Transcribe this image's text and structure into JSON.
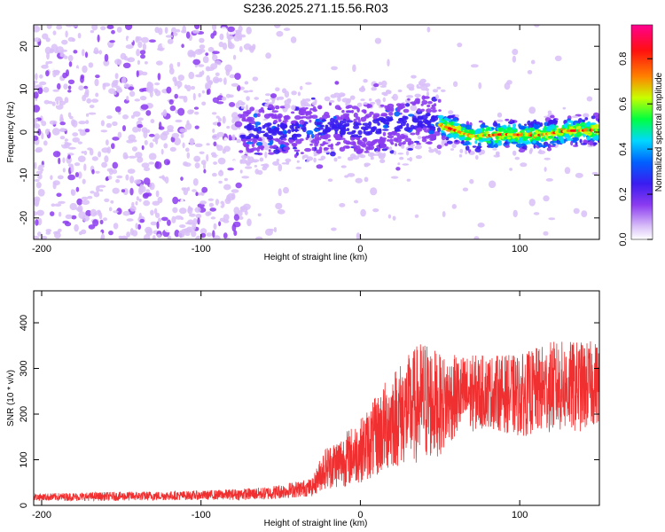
{
  "figure_title": "S236.2025.271.15.56.R03",
  "chart_data": [
    {
      "type": "heatmap",
      "title": "",
      "xlabel": "Height of straight line (km)",
      "ylabel": "Frequency (Hz)",
      "xlim": [
        -205,
        150
      ],
      "ylim": [
        -25,
        25
      ],
      "xticks": [
        -200,
        -100,
        0,
        100
      ],
      "yticks": [
        -20,
        -10,
        0,
        10,
        20
      ],
      "colorbar": {
        "label": "Normalized spectral amplitude",
        "range": [
          0,
          0.95
        ],
        "ticks": [
          "0.0",
          "0.2",
          "0.4",
          "0.6",
          "0.8"
        ],
        "colors": [
          "#ffffff",
          "#d9c0f8",
          "#8c3cf0",
          "#3a1cf0",
          "#0060ff",
          "#00d8ff",
          "#00ff40",
          "#c8ff00",
          "#ff8000",
          "#ff1010",
          "#ff0090"
        ]
      },
      "ridge": {
        "description_points": [
          [
            -75,
            0
          ],
          [
            -60,
            0.5
          ],
          [
            -40,
            0
          ],
          [
            -20,
            1.5
          ],
          [
            0,
            0.5
          ],
          [
            20,
            2
          ],
          [
            40,
            3
          ],
          [
            55,
            1
          ],
          [
            70,
            -1
          ],
          [
            90,
            -0.5
          ],
          [
            110,
            -0.8
          ],
          [
            130,
            0.3
          ],
          [
            150,
            0.5
          ]
        ],
        "noise_region_end_km": -75
      }
    },
    {
      "type": "line",
      "title": "",
      "xlabel": "Height of straight line (km)",
      "ylabel": "SNR (10 * v/v)",
      "xlim": [
        -205,
        150
      ],
      "ylim": [
        0,
        470
      ],
      "xticks": [
        -200,
        -100,
        0,
        100
      ],
      "yticks": [
        0,
        100,
        200,
        300,
        400
      ],
      "series": [
        {
          "name": "SNR",
          "color": "#f03030",
          "envelope_x": [
            -205,
            -150,
            -100,
            -60,
            -30,
            -23,
            -10,
            0,
            10,
            20,
            30,
            40,
            50,
            60,
            80,
            100,
            120,
            140,
            150
          ],
          "envelope_mean": [
            18,
            20,
            22,
            26,
            40,
            80,
            100,
            120,
            150,
            190,
            210,
            230,
            220,
            240,
            250,
            240,
            260,
            260,
            270
          ],
          "envelope_spread": [
            8,
            10,
            10,
            14,
            20,
            45,
            60,
            70,
            90,
            110,
            120,
            140,
            110,
            90,
            80,
            90,
            100,
            100,
            90
          ]
        }
      ]
    }
  ]
}
